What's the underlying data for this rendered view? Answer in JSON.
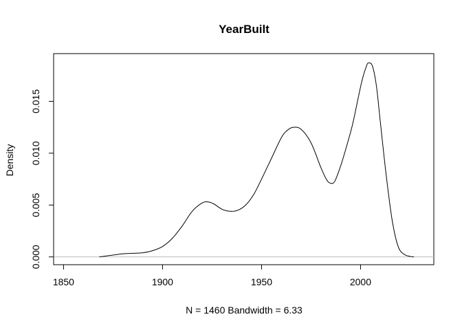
{
  "chart_data": {
    "type": "line",
    "title": "YearBuilt",
    "xlabel": "N = 1460   Bandwidth = 6.33",
    "ylabel": "Density",
    "xlim": [
      1845,
      2037
    ],
    "ylim": [
      -0.00075,
      0.0196
    ],
    "xticks": [
      1850,
      1900,
      1950,
      2000
    ],
    "xtick_labels": [
      "1850",
      "1900",
      "1950",
      "2000"
    ],
    "yticks": [
      0,
      0.005,
      0.01,
      0.015
    ],
    "ytick_labels": [
      "0.000",
      "0.005",
      "0.010",
      "0.015"
    ],
    "baseline": 0,
    "colors": {
      "line": "#000000",
      "baseline": "#bebebe",
      "frame": "#000000"
    },
    "series": [
      {
        "name": "density",
        "x": [
          1868,
          1872,
          1876,
          1880,
          1885,
          1890,
          1895,
          1900,
          1905,
          1910,
          1915,
          1920,
          1923,
          1926,
          1930,
          1934,
          1938,
          1942,
          1946,
          1950,
          1955,
          1960,
          1963,
          1966,
          1970,
          1975,
          1980,
          1983,
          1985,
          1987,
          1990,
          1993,
          1996,
          1999,
          2001,
          2003,
          2004,
          2006,
          2008,
          2010,
          2013,
          2016,
          2019,
          2022,
          2025,
          2027
        ],
        "y": [
          0.0,
          0.0001,
          0.0002,
          0.0003,
          0.00035,
          0.0004,
          0.0006,
          0.001,
          0.0018,
          0.003,
          0.0044,
          0.0052,
          0.0053,
          0.0051,
          0.0046,
          0.0044,
          0.0045,
          0.005,
          0.006,
          0.0075,
          0.0095,
          0.0115,
          0.0122,
          0.0125,
          0.0123,
          0.011,
          0.0086,
          0.0074,
          0.0071,
          0.0073,
          0.0088,
          0.0107,
          0.0128,
          0.0155,
          0.0172,
          0.0184,
          0.0187,
          0.0184,
          0.0165,
          0.013,
          0.0078,
          0.0035,
          0.001,
          0.00025,
          5e-05,
          0.0
        ]
      }
    ]
  }
}
